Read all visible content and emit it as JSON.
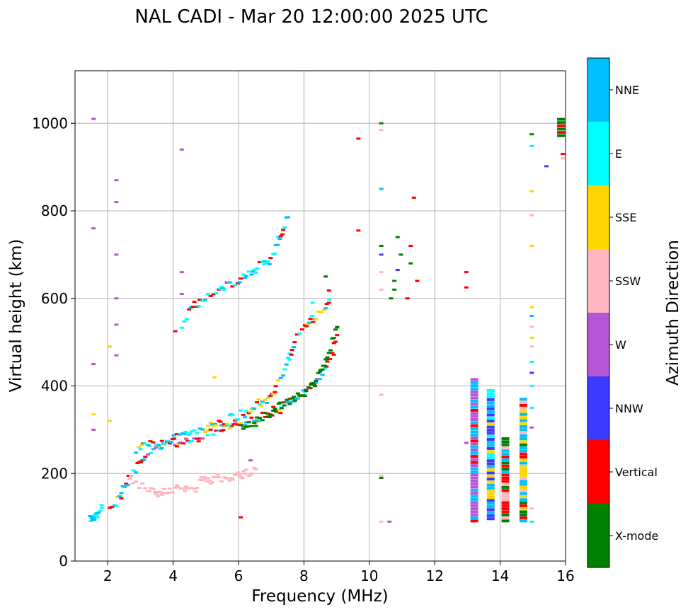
{
  "chart_data": {
    "type": "scatter",
    "title": "NAL CADI - Mar 20 12:00:00 2025 UTC",
    "xlabel": "Frequency (MHz)",
    "ylabel": "Virtual height (km)",
    "xlim": [
      1,
      16
    ],
    "ylim": [
      0,
      1120
    ],
    "xticks": [
      2,
      4,
      6,
      8,
      10,
      12,
      14,
      16
    ],
    "yticks": [
      0,
      200,
      400,
      600,
      800,
      1000
    ],
    "grid": true,
    "colorbar": {
      "label": "Azimuth Direction",
      "categories": [
        {
          "name": "X-mode",
          "color": "#008000"
        },
        {
          "name": "Vertical",
          "color": "#ff0000"
        },
        {
          "name": "NNW",
          "color": "#3b3bff"
        },
        {
          "name": "W",
          "color": "#b655d6"
        },
        {
          "name": "SSW",
          "color": "#ffb6c1"
        },
        {
          "name": "SSE",
          "color": "#ffd700"
        },
        {
          "name": "E",
          "color": "#00ffff"
        },
        {
          "name": "NNE",
          "color": "#00bfff"
        }
      ]
    },
    "traces": [
      {
        "name": "F-layer trace",
        "points": [
          [
            2.0,
            122
          ],
          [
            2.3,
            148
          ],
          [
            2.5,
            178
          ],
          [
            2.8,
            210
          ],
          [
            3.0,
            238
          ],
          [
            3.5,
            258
          ],
          [
            4.0,
            272
          ],
          [
            4.5,
            282
          ],
          [
            5.0,
            292
          ],
          [
            5.5,
            300
          ],
          [
            6.0,
            308
          ],
          [
            6.5,
            325
          ],
          [
            7.0,
            345
          ],
          [
            7.5,
            365
          ],
          [
            8.0,
            390
          ],
          [
            8.5,
            430
          ],
          [
            8.8,
            480
          ],
          [
            9.0,
            540
          ]
        ],
        "colors": [
          "Vertical",
          "NNE",
          "E",
          "Vertical",
          "Vertical",
          "SSE",
          "W",
          "NNE"
        ]
      },
      {
        "name": "upper O trace",
        "points": [
          [
            2.8,
            255
          ],
          [
            3.5,
            272
          ],
          [
            4.5,
            292
          ],
          [
            5.0,
            305
          ],
          [
            5.5,
            320
          ],
          [
            6.0,
            335
          ],
          [
            6.5,
            358
          ],
          [
            7.0,
            385
          ],
          [
            7.3,
            430
          ],
          [
            7.5,
            480
          ],
          [
            7.8,
            520
          ],
          [
            8.3,
            560
          ],
          [
            8.8,
            600
          ]
        ],
        "colors": [
          "E",
          "NNE",
          "Vertical",
          "SSE"
        ]
      },
      {
        "name": "X-mode trace",
        "points": [
          [
            6.0,
            305
          ],
          [
            6.5,
            320
          ],
          [
            7.0,
            345
          ],
          [
            7.5,
            365
          ],
          [
            8.0,
            390
          ],
          [
            8.3,
            420
          ],
          [
            8.6,
            460
          ],
          [
            8.8,
            500
          ],
          [
            9.0,
            540
          ]
        ],
        "colors": [
          "X-mode"
        ]
      },
      {
        "name": "SSW lower trace",
        "points": [
          [
            2.6,
            180
          ],
          [
            3.0,
            170
          ],
          [
            3.5,
            158
          ],
          [
            4.0,
            162
          ],
          [
            4.5,
            172
          ],
          [
            5.0,
            182
          ],
          [
            5.5,
            190
          ],
          [
            6.0,
            198
          ],
          [
            6.5,
            208
          ]
        ],
        "colors": [
          "SSW"
        ]
      },
      {
        "name": "multihop trace",
        "points": [
          [
            4.2,
            530
          ],
          [
            4.5,
            580
          ],
          [
            5.0,
            610
          ],
          [
            5.5,
            625
          ],
          [
            6.0,
            645
          ],
          [
            6.5,
            670
          ],
          [
            7.0,
            705
          ],
          [
            7.3,
            760
          ],
          [
            7.5,
            800
          ]
        ],
        "colors": [
          "Vertical",
          "NNE",
          "E"
        ]
      },
      {
        "name": "low echoes",
        "points": [
          [
            1.4,
            95
          ],
          [
            1.5,
            105
          ],
          [
            1.6,
            115
          ],
          [
            1.8,
            122
          ]
        ],
        "colors": [
          "NNE",
          "E"
        ]
      }
    ],
    "columns": [
      {
        "freq": 13.2,
        "from": 90,
        "to": 420,
        "colors": [
          "W",
          "NNE",
          "Vertical",
          "W",
          "NNE"
        ]
      },
      {
        "freq": 13.7,
        "from": 95,
        "to": 395,
        "colors": [
          "NNE",
          "NNW",
          "E",
          "SSE"
        ]
      },
      {
        "freq": 14.15,
        "from": 90,
        "to": 285,
        "colors": [
          "X-mode",
          "Vertical",
          "NNE",
          "SSW"
        ]
      },
      {
        "freq": 14.7,
        "from": 90,
        "to": 375,
        "colors": [
          "SSW",
          "SSE",
          "NNE",
          "X-mode",
          "Vertical"
        ]
      },
      {
        "freq": 15.85,
        "from": 970,
        "to": 1015,
        "colors": [
          "Vertical",
          "X-mode"
        ]
      }
    ],
    "scatter": [
      [
        1.5,
        1010,
        "W"
      ],
      [
        1.5,
        760,
        "W"
      ],
      [
        1.5,
        450,
        "W"
      ],
      [
        1.5,
        300,
        "W"
      ],
      [
        1.5,
        335,
        "SSE"
      ],
      [
        2.2,
        870,
        "W"
      ],
      [
        2.2,
        820,
        "W"
      ],
      [
        2.2,
        700,
        "W"
      ],
      [
        2.2,
        600,
        "W"
      ],
      [
        2.2,
        540,
        "W"
      ],
      [
        2.2,
        470,
        "W"
      ],
      [
        2.0,
        490,
        "SSE"
      ],
      [
        2.0,
        320,
        "SSE"
      ],
      [
        4.2,
        940,
        "W"
      ],
      [
        4.2,
        660,
        "W"
      ],
      [
        4.2,
        610,
        "W"
      ],
      [
        4.0,
        525,
        "Vertical"
      ],
      [
        6.3,
        230,
        "W"
      ],
      [
        5.2,
        420,
        "SSE"
      ],
      [
        6.0,
        100,
        "Vertical"
      ],
      [
        8.6,
        650,
        "X-mode"
      ],
      [
        8.7,
        618,
        "Vertical"
      ],
      [
        8.2,
        590,
        "E"
      ],
      [
        8.7,
        590,
        "Vertical"
      ],
      [
        9.6,
        965,
        "Vertical"
      ],
      [
        9.6,
        755,
        "Vertical"
      ],
      [
        10.3,
        1000,
        "X-mode"
      ],
      [
        10.3,
        985,
        "SSW"
      ],
      [
        10.3,
        850,
        "NNE"
      ],
      [
        10.3,
        720,
        "X-mode"
      ],
      [
        10.3,
        700,
        "NNW"
      ],
      [
        10.3,
        660,
        "SSW"
      ],
      [
        10.3,
        620,
        "SSW"
      ],
      [
        10.3,
        380,
        "SSW"
      ],
      [
        10.3,
        195,
        "SSW"
      ],
      [
        10.3,
        190,
        "X-mode"
      ],
      [
        10.3,
        90,
        "SSW"
      ],
      [
        10.55,
        90,
        "W"
      ],
      [
        10.8,
        740,
        "X-mode"
      ],
      [
        10.9,
        700,
        "X-mode"
      ],
      [
        10.8,
        665,
        "NNW"
      ],
      [
        10.7,
        640,
        "X-mode"
      ],
      [
        10.6,
        600,
        "X-mode"
      ],
      [
        10.7,
        620,
        "X-mode"
      ],
      [
        11.2,
        720,
        "Vertical"
      ],
      [
        11.2,
        680,
        "X-mode"
      ],
      [
        11.1,
        600,
        "Vertical"
      ],
      [
        11.4,
        640,
        "Vertical"
      ],
      [
        11.3,
        830,
        "Vertical"
      ],
      [
        12.9,
        660,
        "Vertical"
      ],
      [
        12.9,
        625,
        "Vertical"
      ],
      [
        12.9,
        270,
        "W"
      ],
      [
        14.9,
        975,
        "X-mode"
      ],
      [
        14.9,
        948,
        "E"
      ],
      [
        14.9,
        845,
        "SSE"
      ],
      [
        14.9,
        790,
        "SSW"
      ],
      [
        14.9,
        720,
        "SSE"
      ],
      [
        14.9,
        580,
        "SSE"
      ],
      [
        14.9,
        560,
        "NNE"
      ],
      [
        14.9,
        535,
        "SSW"
      ],
      [
        14.9,
        510,
        "SSE"
      ],
      [
        14.9,
        490,
        "SSW"
      ],
      [
        14.9,
        455,
        "E"
      ],
      [
        14.9,
        430,
        "NNW"
      ],
      [
        14.9,
        400,
        "E"
      ],
      [
        14.9,
        350,
        "E"
      ],
      [
        14.9,
        305,
        "W"
      ],
      [
        14.9,
        120,
        "SSW"
      ],
      [
        14.9,
        90,
        "E"
      ],
      [
        15.35,
        902,
        "NNW"
      ],
      [
        15.85,
        930,
        "Vertical"
      ],
      [
        15.85,
        920,
        "SSW"
      ]
    ]
  }
}
